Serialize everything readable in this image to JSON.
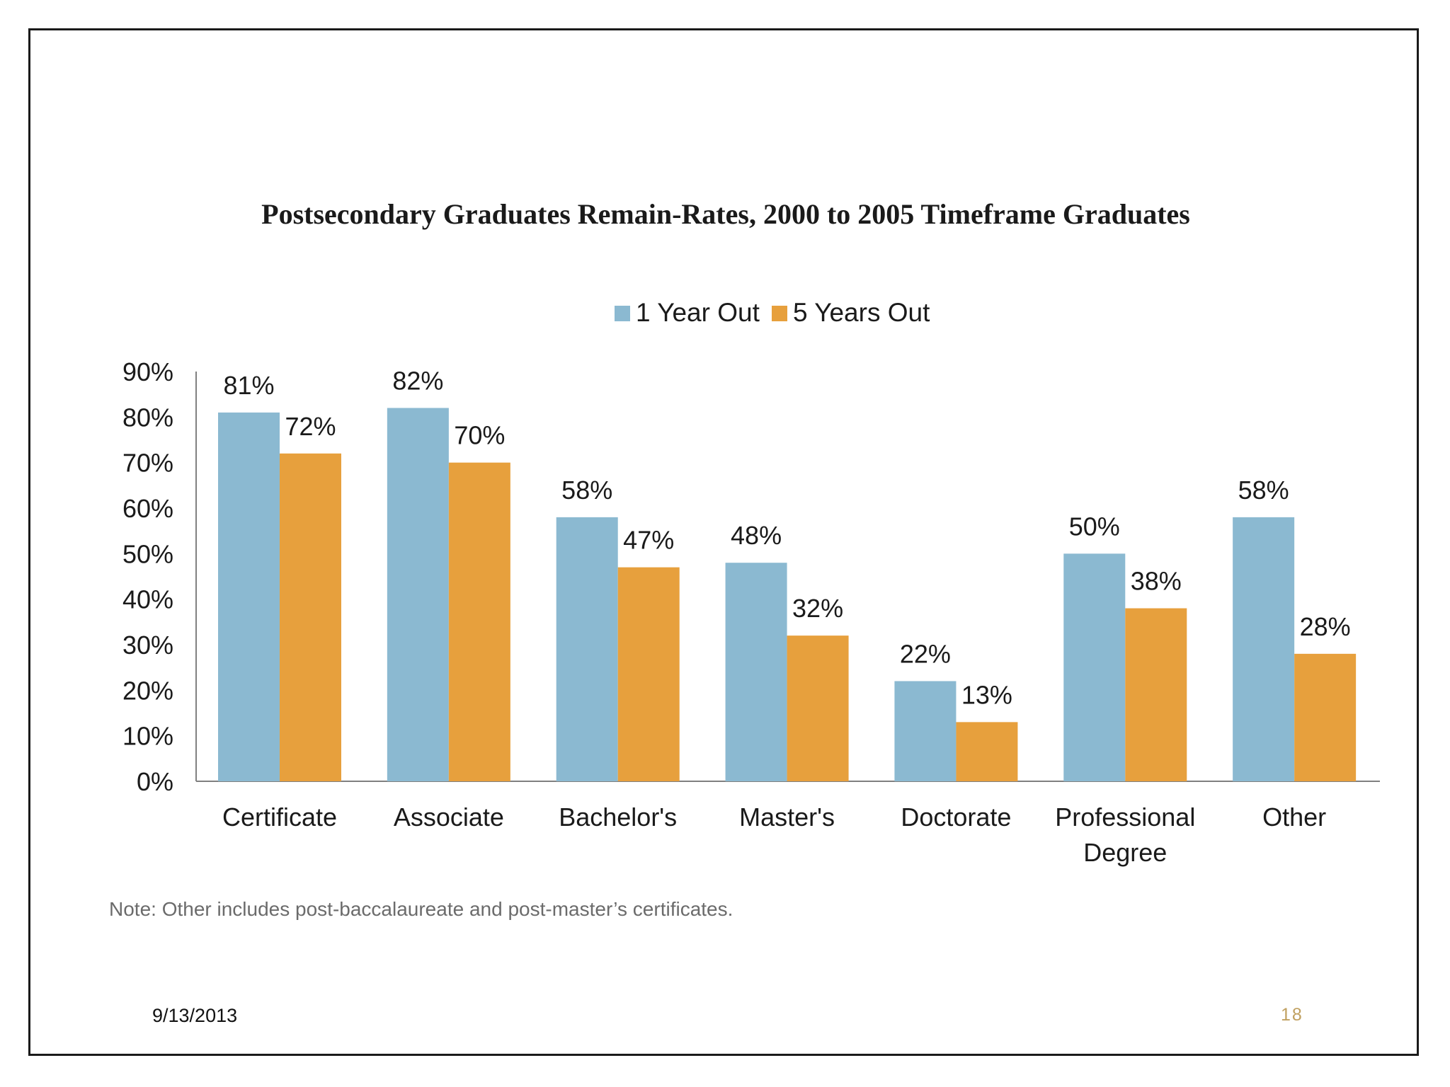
{
  "footer": {
    "date": "9/13/2013",
    "page_number": "18"
  },
  "colors": {
    "one_year": "#8BB9D1",
    "five_years": "#E7A03D",
    "axis": "#808080",
    "text": "#1a1a1a",
    "note": "#6b6b6b"
  },
  "chart_data": {
    "type": "bar",
    "title": "Postsecondary Graduates Remain-Rates, 2000 to 2005 Timeframe Graduates",
    "note": "Note: Other includes post-baccalaureate and post-master’s certificates.",
    "legend_position": "top-center",
    "categories": [
      [
        "Certificate"
      ],
      [
        "Associate"
      ],
      [
        "Bachelor's"
      ],
      [
        "Master's"
      ],
      [
        "Doctorate"
      ],
      [
        "Professional",
        "Degree"
      ],
      [
        "Other"
      ]
    ],
    "series": [
      {
        "name": "1 Year Out",
        "color": "#8BB9D1",
        "values": [
          81,
          82,
          58,
          48,
          22,
          50,
          58
        ],
        "labels": [
          "81%",
          "82%",
          "58%",
          "48%",
          "22%",
          "50%",
          "58%"
        ]
      },
      {
        "name": "5 Years Out",
        "color": "#E7A03D",
        "values": [
          72,
          70,
          47,
          32,
          13,
          38,
          28
        ],
        "labels": [
          "72%",
          "70%",
          "47%",
          "32%",
          "13%",
          "38%",
          "28%"
        ]
      }
    ],
    "ylim": [
      0,
      90
    ],
    "yticks": [
      0,
      10,
      20,
      30,
      40,
      50,
      60,
      70,
      80,
      90
    ],
    "ytick_labels": [
      "0%",
      "10%",
      "20%",
      "30%",
      "40%",
      "50%",
      "60%",
      "70%",
      "80%",
      "90%"
    ],
    "xlabel": "",
    "ylabel": "",
    "grid": false
  }
}
